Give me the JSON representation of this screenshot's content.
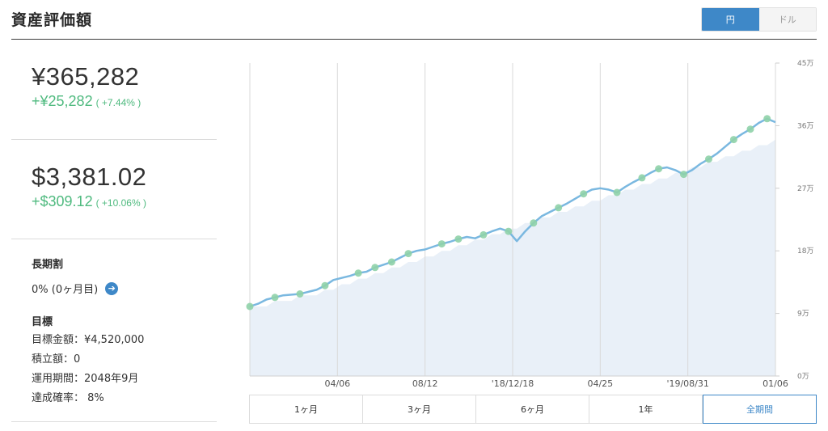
{
  "header": {
    "title": "資産評価額"
  },
  "currency_toggle": {
    "options": [
      "円",
      "ドル"
    ],
    "selected": "円"
  },
  "summary": {
    "jpy": {
      "value": "¥365,282",
      "gain": "+¥25,282",
      "gain_pct": "( +7.44% )"
    },
    "usd": {
      "value": "$3,381.02",
      "gain": "+$309.12",
      "gain_pct": "( +10.06% )"
    }
  },
  "long_term": {
    "label": "長期割",
    "value": "0% (0ヶ月目)"
  },
  "goal": {
    "label": "目標",
    "lines": [
      "目標金額：¥4,520,000",
      "積立額：0",
      "運用期間：2048年9月",
      "達成確率： 8%"
    ]
  },
  "period_tabs": {
    "items": [
      "1ヶ月",
      "3ヶ月",
      "6ヶ月",
      "1年",
      "全期間"
    ],
    "selected": "全期間"
  },
  "colors": {
    "accent": "#3e88c8",
    "gain": "#4fba7f",
    "line": "#7ab8e0",
    "marker": "#8fd1a8",
    "area": "#e9f0f8"
  },
  "chart_data": {
    "type": "line",
    "x_tick_labels": [
      "04/06",
      "08/12",
      "'18/12/18",
      "04/25",
      "'19/08/31",
      "01/06"
    ],
    "y_tick_labels": [
      "0万",
      "9万",
      "18万",
      "27万",
      "36万",
      "45万"
    ],
    "ylim": [
      0,
      450000
    ],
    "grid": true,
    "series": [
      {
        "values": [
          100000,
          104000,
          110000,
          113000,
          116000,
          117000,
          118000,
          121000,
          124000,
          130000,
          138000,
          141000,
          144000,
          148000,
          150000,
          156000,
          160000,
          164000,
          170000,
          176000,
          180000,
          182000,
          186000,
          190000,
          193000,
          197000,
          200000,
          198000,
          203000,
          208000,
          212000,
          208000,
          194000,
          208000,
          220000,
          230000,
          236000,
          242000,
          248000,
          255000,
          262000,
          268000,
          270000,
          268000,
          264000,
          272000,
          279000,
          285000,
          292000,
          298000,
          300000,
          296000,
          290000,
          296000,
          305000,
          312000,
          320000,
          330000,
          340000,
          348000,
          355000,
          364000,
          370000,
          365000
        ]
      },
      {
        "values": [
          100000,
          100000,
          100000,
          108000,
          108000,
          108000,
          116000,
          116000,
          116000,
          124000,
          124000,
          132000,
          132000,
          140000,
          140000,
          148000,
          148000,
          156000,
          156000,
          164000,
          164000,
          172000,
          172000,
          180000,
          180000,
          188000,
          188000,
          196000,
          196000,
          204000,
          204000,
          212000,
          212000,
          220000,
          220000,
          228000,
          228000,
          236000,
          236000,
          244000,
          244000,
          252000,
          252000,
          260000,
          260000,
          268000,
          268000,
          276000,
          276000,
          284000,
          284000,
          292000,
          292000,
          300000,
          300000,
          308000,
          308000,
          316000,
          316000,
          324000,
          324000,
          332000,
          332000,
          340000
        ]
      }
    ],
    "deposit_markers": [
      0,
      3,
      6,
      9,
      13,
      15,
      17,
      19,
      23,
      25,
      28,
      31,
      34,
      37,
      40,
      44,
      47,
      49,
      52,
      55,
      58,
      60,
      62
    ]
  }
}
